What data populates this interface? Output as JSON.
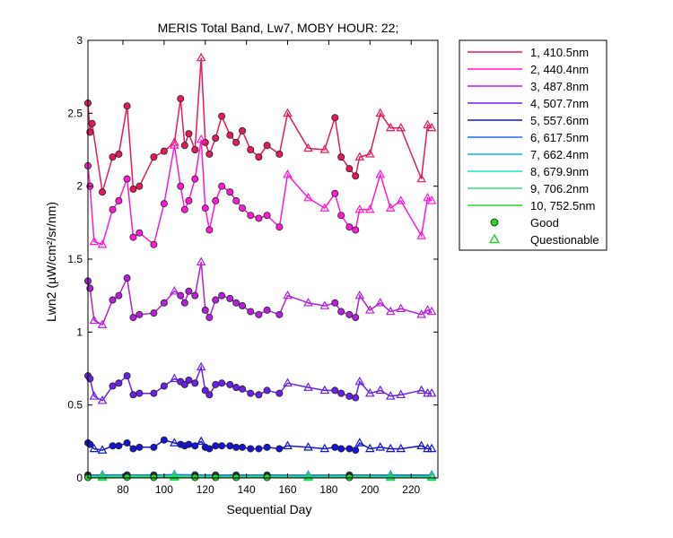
{
  "chart_data": {
    "type": "line",
    "title": "MERIS Total Band, Lw7, MOBY HOUR: 22;",
    "xlabel": "Sequential Day",
    "ylabel": "Lwn2 (µW/cm²/sr/nm)",
    "xlim": [
      63,
      233
    ],
    "ylim": [
      0,
      3
    ],
    "xticks": [
      80,
      100,
      120,
      140,
      160,
      180,
      200,
      220
    ],
    "yticks": [
      0,
      0.5,
      1,
      1.5,
      2,
      2.5,
      3
    ],
    "grid": false,
    "legend_position": "outside-right",
    "legend": {
      "series_labels": [
        "1, 410.5nm",
        "2, 440.4nm",
        "3, 487.8nm",
        "4, 507.7nm",
        "5, 557.6nm",
        "6, 617.5nm",
        "7, 662.4nm",
        "8, 679.9nm",
        "9, 706.2nm",
        "10, 752.5nm"
      ],
      "marker_labels": [
        "Good",
        "Questionable"
      ]
    },
    "series": [
      {
        "name": "1, 410.5nm",
        "color": "#e6195a",
        "x": [
          63,
          64,
          65,
          70,
          75,
          78,
          82,
          85,
          88,
          95,
          100,
          105,
          108,
          110,
          112,
          115,
          118,
          120,
          122,
          125,
          128,
          132,
          135,
          138,
          142,
          146,
          150,
          156,
          160,
          170,
          178,
          183,
          186,
          190,
          193,
          195,
          200,
          205,
          210,
          215,
          225,
          228,
          230
        ],
        "y": [
          2.57,
          2.37,
          2.43,
          1.96,
          2.2,
          2.22,
          2.55,
          1.98,
          2.0,
          2.2,
          2.24,
          2.3,
          2.6,
          2.28,
          2.36,
          2.25,
          2.88,
          2.3,
          2.22,
          2.33,
          2.48,
          2.35,
          2.3,
          2.38,
          2.25,
          2.2,
          2.28,
          2.22,
          2.5,
          2.26,
          2.25,
          2.47,
          2.2,
          2.12,
          2.07,
          2.2,
          2.22,
          2.5,
          2.4,
          2.4,
          2.05,
          2.42,
          2.4
        ],
        "good": [
          1,
          1,
          1,
          1,
          1,
          1,
          1,
          1,
          1,
          1,
          1,
          0,
          1,
          1,
          1,
          1,
          0,
          1,
          1,
          1,
          1,
          1,
          1,
          1,
          1,
          1,
          1,
          1,
          0,
          0,
          0,
          1,
          1,
          1,
          1,
          0,
          0,
          0,
          0,
          0,
          0,
          0,
          0
        ]
      },
      {
        "name": "2, 440.4nm",
        "color": "#ff1ad2",
        "x": [
          63,
          64,
          66,
          70,
          75,
          78,
          82,
          85,
          88,
          95,
          100,
          105,
          108,
          110,
          112,
          115,
          118,
          120,
          122,
          125,
          128,
          132,
          135,
          138,
          142,
          146,
          150,
          156,
          160,
          170,
          178,
          183,
          186,
          190,
          193,
          195,
          200,
          205,
          210,
          215,
          225,
          228,
          230
        ],
        "y": [
          2.14,
          2.0,
          1.62,
          1.6,
          1.84,
          1.9,
          2.05,
          1.65,
          1.68,
          1.6,
          1.88,
          2.28,
          2.0,
          1.84,
          1.9,
          2.05,
          2.32,
          1.85,
          1.7,
          1.9,
          2.0,
          1.96,
          1.9,
          1.85,
          1.8,
          1.78,
          1.8,
          1.72,
          2.08,
          1.92,
          1.85,
          1.95,
          1.8,
          1.72,
          1.7,
          1.84,
          1.84,
          2.08,
          1.85,
          1.9,
          1.66,
          1.92,
          1.9
        ],
        "good": [
          1,
          1,
          0,
          0,
          1,
          1,
          1,
          1,
          1,
          1,
          1,
          0,
          1,
          1,
          1,
          1,
          0,
          1,
          1,
          1,
          1,
          1,
          1,
          1,
          1,
          1,
          1,
          1,
          0,
          0,
          0,
          1,
          1,
          1,
          1,
          0,
          0,
          0,
          0,
          0,
          0,
          0,
          0
        ]
      },
      {
        "name": "3, 487.8nm",
        "color": "#b420dc",
        "x": [
          63,
          64,
          66,
          70,
          75,
          78,
          82,
          85,
          88,
          95,
          100,
          105,
          108,
          110,
          112,
          115,
          118,
          120,
          122,
          125,
          128,
          132,
          135,
          138,
          142,
          146,
          150,
          156,
          160,
          170,
          178,
          183,
          186,
          190,
          193,
          195,
          200,
          205,
          210,
          215,
          225,
          228,
          230
        ],
        "y": [
          1.35,
          1.3,
          1.08,
          1.05,
          1.22,
          1.25,
          1.37,
          1.1,
          1.12,
          1.13,
          1.2,
          1.28,
          1.25,
          1.2,
          1.28,
          1.25,
          1.48,
          1.15,
          1.1,
          1.22,
          1.25,
          1.23,
          1.2,
          1.18,
          1.14,
          1.12,
          1.15,
          1.12,
          1.25,
          1.2,
          1.18,
          1.2,
          1.14,
          1.12,
          1.1,
          1.25,
          1.15,
          1.2,
          1.14,
          1.16,
          1.12,
          1.15,
          1.14
        ],
        "good": [
          1,
          1,
          0,
          0,
          1,
          1,
          1,
          1,
          1,
          1,
          1,
          0,
          1,
          1,
          1,
          1,
          0,
          1,
          1,
          1,
          1,
          1,
          1,
          1,
          1,
          1,
          1,
          1,
          0,
          0,
          0,
          1,
          1,
          1,
          1,
          0,
          0,
          0,
          0,
          0,
          0,
          0,
          0
        ]
      },
      {
        "name": "4, 507.7nm",
        "color": "#6a20e8",
        "x": [
          63,
          64,
          66,
          70,
          75,
          78,
          82,
          85,
          88,
          95,
          100,
          105,
          108,
          110,
          112,
          115,
          118,
          120,
          122,
          125,
          128,
          132,
          135,
          138,
          142,
          146,
          150,
          156,
          160,
          170,
          178,
          183,
          186,
          190,
          193,
          195,
          200,
          205,
          210,
          215,
          225,
          228,
          230
        ],
        "y": [
          0.7,
          0.68,
          0.56,
          0.53,
          0.63,
          0.65,
          0.7,
          0.57,
          0.58,
          0.58,
          0.63,
          0.68,
          0.66,
          0.64,
          0.67,
          0.65,
          0.76,
          0.6,
          0.57,
          0.64,
          0.65,
          0.64,
          0.62,
          0.61,
          0.58,
          0.57,
          0.6,
          0.58,
          0.65,
          0.62,
          0.6,
          0.6,
          0.58,
          0.56,
          0.55,
          0.66,
          0.58,
          0.6,
          0.56,
          0.57,
          0.6,
          0.58,
          0.58
        ],
        "good": [
          1,
          1,
          0,
          0,
          1,
          1,
          1,
          1,
          1,
          1,
          1,
          0,
          1,
          1,
          1,
          1,
          0,
          1,
          1,
          1,
          1,
          1,
          1,
          1,
          1,
          1,
          1,
          1,
          0,
          0,
          0,
          1,
          1,
          1,
          1,
          0,
          0,
          0,
          0,
          0,
          0,
          0,
          0
        ]
      },
      {
        "name": "5, 557.6nm",
        "color": "#1414d2",
        "x": [
          63,
          64,
          66,
          70,
          75,
          78,
          82,
          85,
          88,
          95,
          100,
          105,
          108,
          110,
          112,
          115,
          118,
          120,
          122,
          125,
          128,
          132,
          135,
          138,
          142,
          146,
          150,
          156,
          160,
          170,
          178,
          183,
          186,
          190,
          193,
          195,
          200,
          205,
          210,
          215,
          225,
          228,
          230
        ],
        "y": [
          0.24,
          0.23,
          0.2,
          0.19,
          0.22,
          0.22,
          0.24,
          0.2,
          0.21,
          0.21,
          0.26,
          0.24,
          0.23,
          0.22,
          0.23,
          0.22,
          0.25,
          0.21,
          0.2,
          0.22,
          0.22,
          0.22,
          0.21,
          0.21,
          0.2,
          0.2,
          0.21,
          0.2,
          0.22,
          0.21,
          0.2,
          0.21,
          0.2,
          0.2,
          0.19,
          0.24,
          0.2,
          0.21,
          0.2,
          0.2,
          0.22,
          0.2,
          0.2
        ],
        "good": [
          1,
          1,
          0,
          0,
          1,
          1,
          1,
          1,
          1,
          1,
          1,
          0,
          1,
          1,
          1,
          1,
          0,
          1,
          1,
          1,
          1,
          1,
          1,
          1,
          1,
          1,
          1,
          1,
          0,
          0,
          0,
          1,
          1,
          1,
          1,
          0,
          0,
          0,
          0,
          0,
          0,
          0,
          0
        ]
      },
      {
        "name": "6, 617.5nm",
        "color": "#1e6ee6",
        "x": [
          63,
          70,
          82,
          95,
          105,
          115,
          125,
          135,
          150,
          170,
          190,
          210,
          230
        ],
        "y": [
          0.02,
          0.02,
          0.021,
          0.02,
          0.022,
          0.021,
          0.02,
          0.02,
          0.02,
          0.019,
          0.02,
          0.02,
          0.02
        ],
        "good": [
          1,
          0,
          1,
          1,
          0,
          1,
          1,
          1,
          1,
          0,
          1,
          0,
          0
        ]
      },
      {
        "name": "7, 662.4nm",
        "color": "#14b4e6",
        "x": [
          63,
          70,
          82,
          95,
          105,
          115,
          125,
          135,
          150,
          170,
          190,
          210,
          230
        ],
        "y": [
          0.012,
          0.011,
          0.013,
          0.012,
          0.014,
          0.012,
          0.011,
          0.011,
          0.012,
          0.011,
          0.012,
          0.011,
          0.011
        ],
        "good": [
          1,
          0,
          1,
          1,
          0,
          1,
          1,
          1,
          1,
          0,
          1,
          0,
          0
        ]
      },
      {
        "name": "8, 679.9nm",
        "color": "#1ee6c8",
        "x": [
          63,
          70,
          82,
          95,
          105,
          115,
          125,
          135,
          150,
          170,
          190,
          210,
          230
        ],
        "y": [
          0.01,
          0.009,
          0.011,
          0.01,
          0.012,
          0.01,
          0.01,
          0.009,
          0.01,
          0.009,
          0.01,
          0.009,
          0.009
        ],
        "good": [
          1,
          0,
          1,
          1,
          0,
          1,
          1,
          1,
          1,
          0,
          1,
          0,
          0
        ]
      },
      {
        "name": "9, 706.2nm",
        "color": "#32e678",
        "x": [
          63,
          70,
          82,
          95,
          105,
          115,
          125,
          135,
          150,
          170,
          190,
          210,
          230
        ],
        "y": [
          0.006,
          0.005,
          0.007,
          0.006,
          0.008,
          0.006,
          0.006,
          0.005,
          0.006,
          0.005,
          0.006,
          0.005,
          0.005
        ],
        "good": [
          1,
          0,
          1,
          1,
          0,
          1,
          1,
          1,
          1,
          0,
          1,
          0,
          0
        ]
      },
      {
        "name": "10, 752.5nm",
        "color": "#28d228",
        "x": [
          63,
          70,
          82,
          95,
          105,
          115,
          125,
          135,
          150,
          170,
          190,
          210,
          230
        ],
        "y": [
          0.003,
          0.003,
          0.004,
          0.003,
          0.004,
          0.003,
          0.003,
          0.003,
          0.003,
          0.003,
          0.003,
          0.003,
          0.003
        ],
        "good": [
          1,
          0,
          1,
          1,
          0,
          1,
          1,
          1,
          1,
          0,
          1,
          0,
          0
        ]
      }
    ]
  }
}
